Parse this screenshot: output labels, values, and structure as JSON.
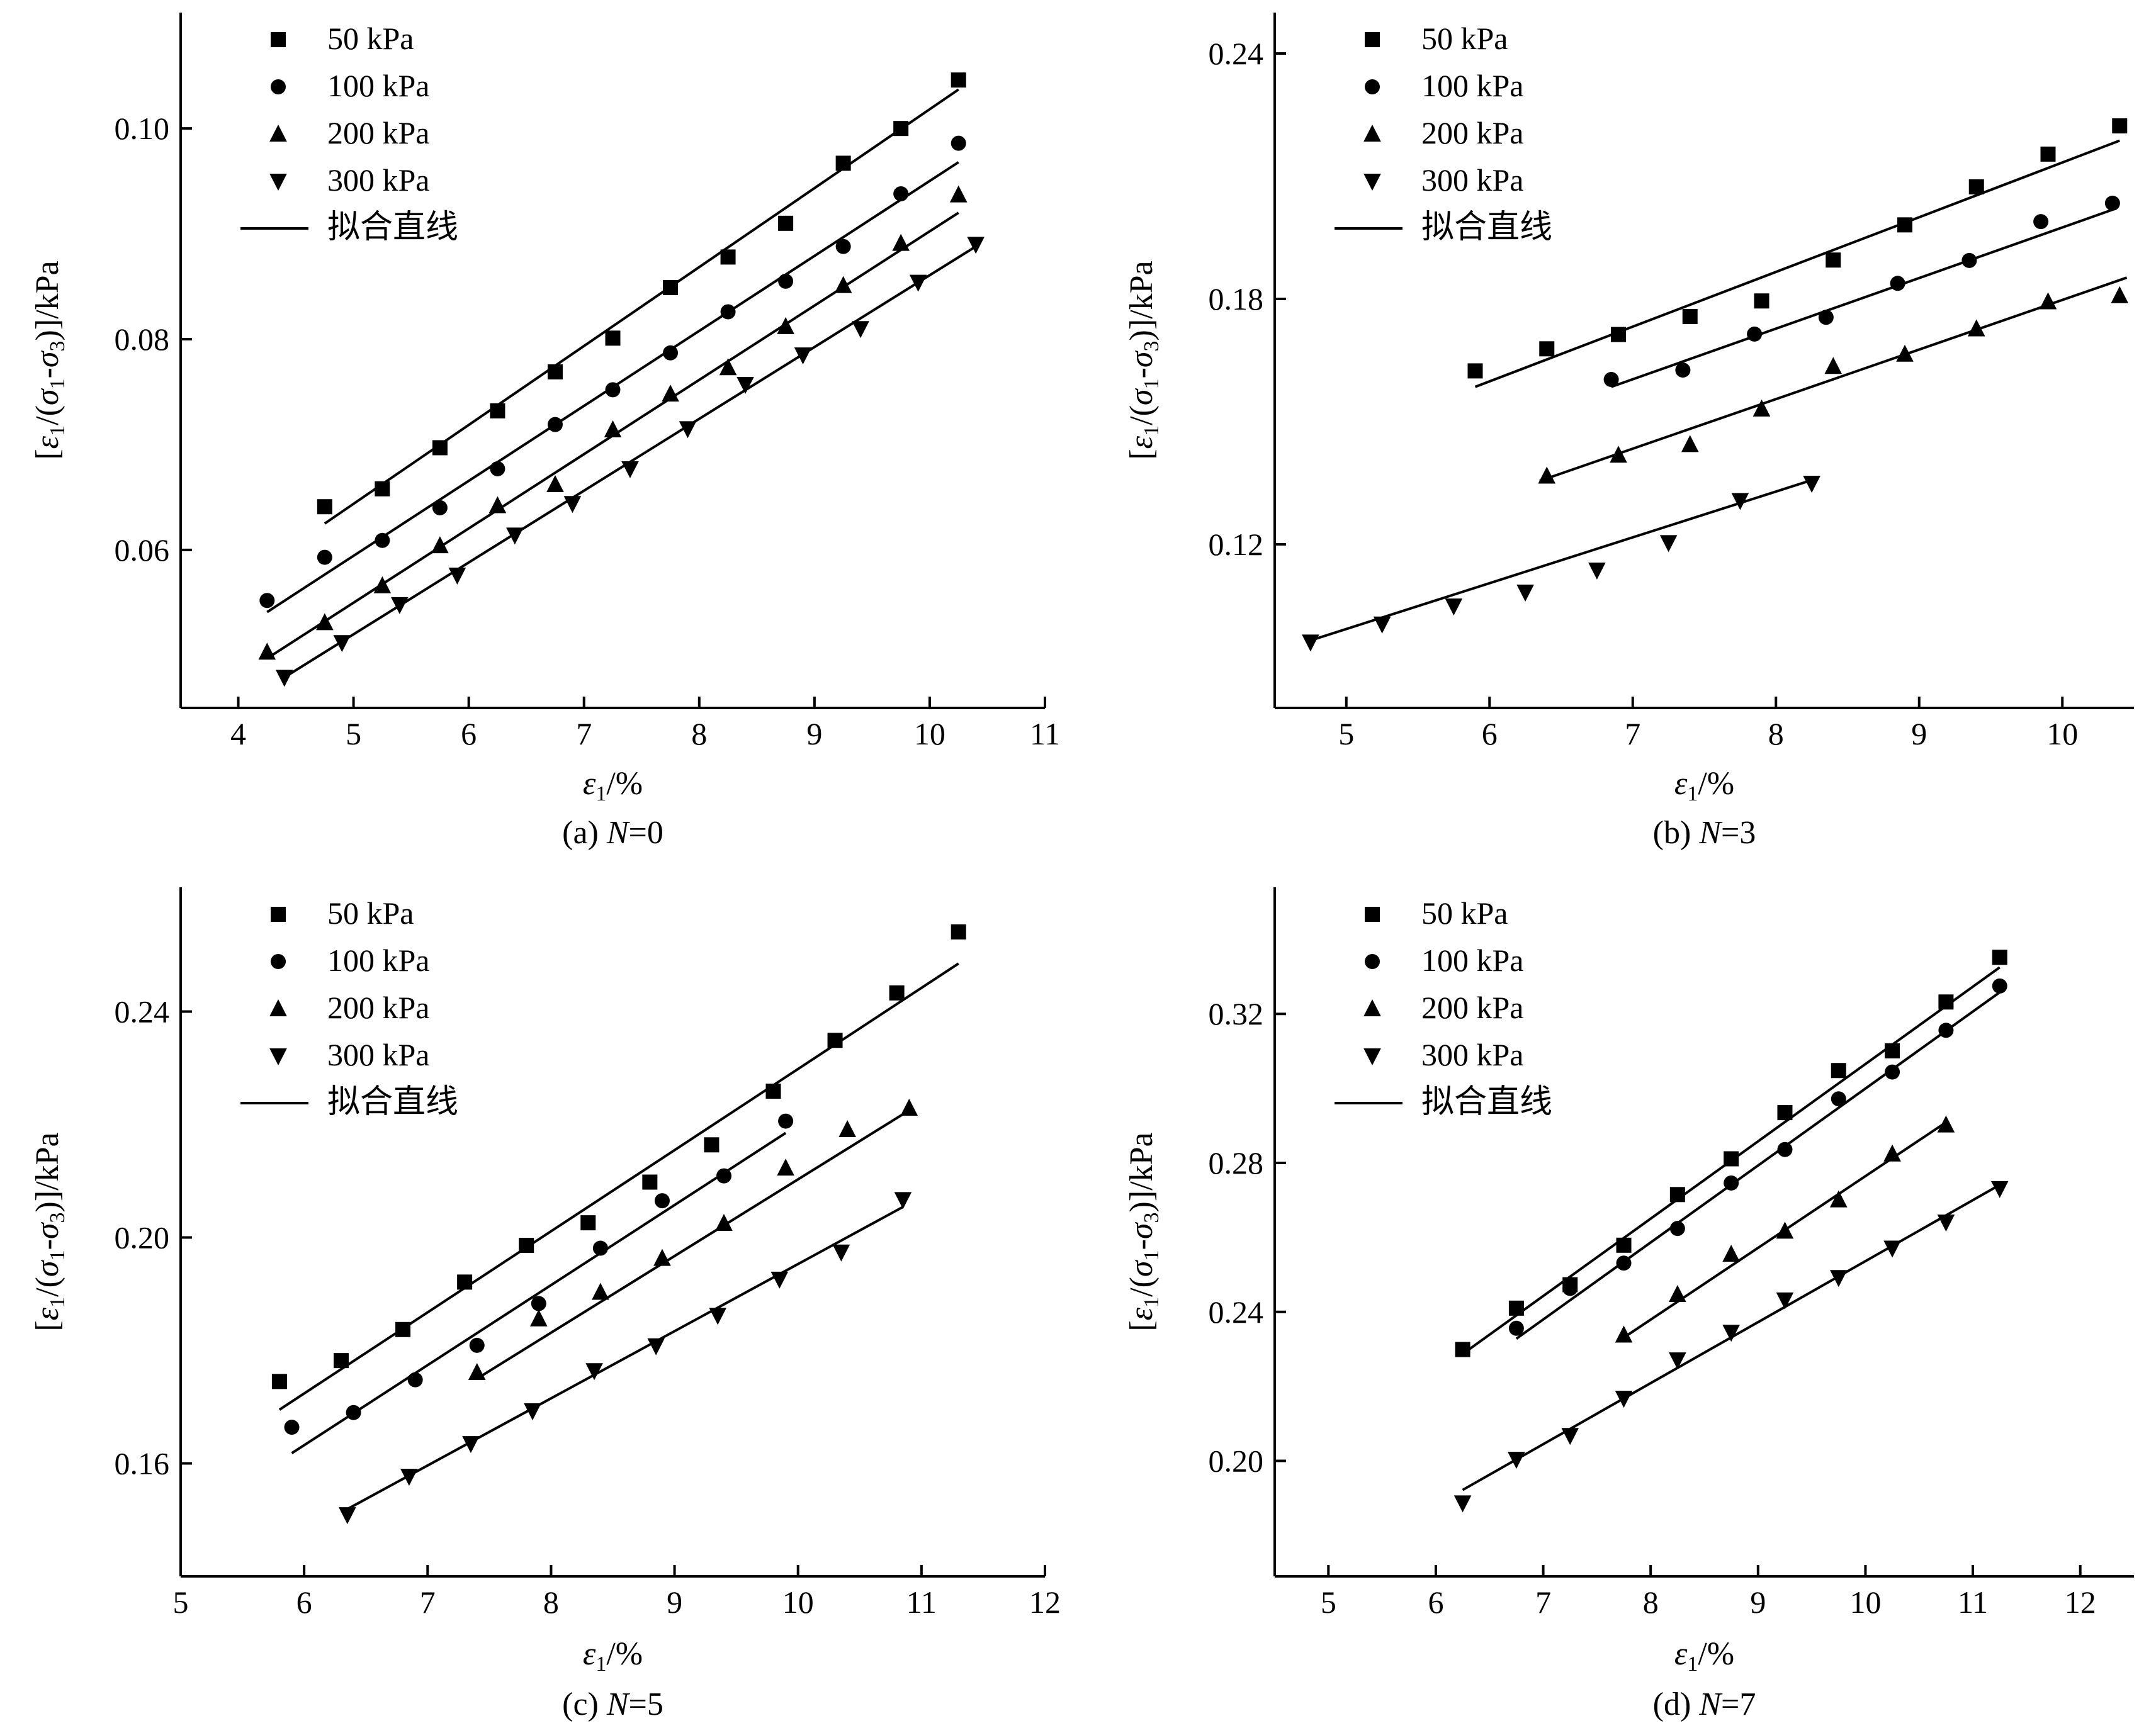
{
  "legend": {
    "series": [
      "50 kPa",
      "100 kPa",
      "200 kPa",
      "300 kPa"
    ],
    "fit_label": "拟合直线"
  },
  "axes_text": {
    "xlabel": "ε1/%",
    "ylabel": "[ε1/(σ1-σ3)]/kPa"
  },
  "chart_data": [
    {
      "type": "scatter",
      "caption": "(a) N=0",
      "xlim": [
        3.5,
        11
      ],
      "ylim": [
        0.045,
        0.111
      ],
      "xticks": [
        4,
        5,
        6,
        7,
        8,
        9,
        10,
        11
      ],
      "yticks": [
        0.06,
        0.08,
        0.1
      ],
      "ytick_labels": [
        "0.06",
        "0.08",
        "0.10"
      ],
      "series": [
        {
          "name": "50 kPa",
          "marker": "square",
          "x": [
            4.75,
            5.25,
            5.75,
            6.25,
            6.75,
            7.25,
            7.75,
            8.25,
            8.75,
            9.25,
            9.75,
            10.25
          ],
          "y": [
            0.0641,
            0.0658,
            0.0697,
            0.0732,
            0.0769,
            0.0801,
            0.0849,
            0.0878,
            0.091,
            0.0967,
            0.1,
            0.1046
          ],
          "fit": [
            [
              4.75,
              0.0625
            ],
            [
              10.25,
              0.1037
            ]
          ]
        },
        {
          "name": "100 kPa",
          "marker": "circle",
          "x": [
            4.25,
            4.75,
            5.25,
            5.75,
            6.25,
            6.75,
            7.25,
            7.75,
            8.25,
            8.75,
            9.25,
            9.75,
            10.25
          ],
          "y": [
            0.0552,
            0.0593,
            0.0609,
            0.064,
            0.0677,
            0.0719,
            0.0752,
            0.0787,
            0.0826,
            0.0855,
            0.0888,
            0.0938,
            0.0986
          ],
          "fit": [
            [
              4.25,
              0.0541
            ],
            [
              10.25,
              0.0968
            ]
          ]
        },
        {
          "name": "200 kPa",
          "marker": "triangle-up",
          "x": [
            4.25,
            4.75,
            5.25,
            5.75,
            6.25,
            6.75,
            7.25,
            7.75,
            8.25,
            8.75,
            9.25,
            9.75,
            10.25
          ],
          "y": [
            0.0503,
            0.0531,
            0.0566,
            0.0604,
            0.0642,
            0.0662,
            0.0714,
            0.0748,
            0.0773,
            0.0812,
            0.0851,
            0.0891,
            0.0937
          ],
          "fit": [
            [
              4.25,
              0.0497
            ],
            [
              10.25,
              0.092
            ]
          ]
        },
        {
          "name": "300 kPa",
          "marker": "triangle-down",
          "x": [
            4.4,
            4.9,
            5.4,
            5.9,
            6.4,
            6.9,
            7.4,
            7.9,
            8.4,
            8.9,
            9.4,
            9.9,
            10.4
          ],
          "y": [
            0.0479,
            0.0512,
            0.0548,
            0.0576,
            0.0614,
            0.0644,
            0.0677,
            0.0715,
            0.0757,
            0.0785,
            0.081,
            0.0854,
            0.089
          ],
          "fit": [
            [
              4.4,
              0.0479
            ],
            [
              10.4,
              0.0888
            ]
          ]
        }
      ]
    },
    {
      "type": "scatter",
      "caption": "(b) N=3",
      "xlim": [
        4.5,
        10.5
      ],
      "ylim": [
        0.08,
        0.25
      ],
      "xticks": [
        5,
        6,
        7,
        8,
        9,
        10
      ],
      "yticks": [
        0.12,
        0.18,
        0.24
      ],
      "ytick_labels": [
        "0.12",
        "0.18",
        "0.24"
      ],
      "series": [
        {
          "name": "50 kPa",
          "marker": "square",
          "x": [
            5.9,
            6.4,
            6.9,
            7.4,
            7.9,
            8.4,
            8.9,
            9.4,
            9.9,
            10.4
          ],
          "y": [
            0.1624,
            0.1678,
            0.1713,
            0.1757,
            0.1795,
            0.1895,
            0.1981,
            0.2074,
            0.2154,
            0.2223
          ],
          "fit": [
            [
              5.9,
              0.1585
            ],
            [
              10.4,
              0.2187
            ]
          ]
        },
        {
          "name": "100 kPa",
          "marker": "circle",
          "x": [
            6.85,
            7.35,
            7.85,
            8.35,
            8.85,
            9.35,
            9.85,
            10.35
          ],
          "y": [
            0.1603,
            0.1626,
            0.1714,
            0.1755,
            0.1838,
            0.1894,
            0.1989,
            0.2034
          ],
          "fit": [
            [
              6.85,
              0.1585
            ],
            [
              10.35,
              0.2018
            ]
          ]
        },
        {
          "name": "200 kPa",
          "marker": "triangle-up",
          "x": [
            6.4,
            6.9,
            7.4,
            7.9,
            8.4,
            8.9,
            9.4,
            9.9,
            10.4
          ],
          "y": [
            0.1367,
            0.1418,
            0.1444,
            0.1531,
            0.1635,
            0.1665,
            0.1727,
            0.1793,
            0.1808
          ],
          "fit": [
            [
              6.35,
              0.1355
            ],
            [
              10.45,
              0.1852
            ]
          ]
        },
        {
          "name": "300 kPa",
          "marker": "triangle-down",
          "x": [
            4.75,
            5.25,
            5.75,
            6.25,
            6.75,
            7.25,
            7.75,
            8.25
          ],
          "y": [
            0.0961,
            0.1005,
            0.1049,
            0.1083,
            0.1137,
            0.1204,
            0.1307,
            0.1349
          ],
          "fit": [
            [
              4.75,
              0.0965
            ],
            [
              8.25,
              0.1357
            ]
          ]
        }
      ]
    },
    {
      "type": "scatter",
      "caption": "(c) N=5",
      "xlim": [
        5,
        12
      ],
      "ylim": [
        0.14,
        0.262
      ],
      "xticks": [
        5,
        6,
        7,
        8,
        9,
        10,
        11,
        12
      ],
      "yticks": [
        0.16,
        0.2,
        0.24
      ],
      "ytick_labels": [
        "0.16",
        "0.20",
        "0.24"
      ],
      "series": [
        {
          "name": "50 kPa",
          "marker": "square",
          "x": [
            5.8,
            6.3,
            6.8,
            7.3,
            7.8,
            8.3,
            8.8,
            9.3,
            9.8,
            10.3,
            10.8,
            11.3
          ],
          "y": [
            0.1745,
            0.1782,
            0.1837,
            0.1921,
            0.1986,
            0.2026,
            0.2098,
            0.2164,
            0.2259,
            0.2349,
            0.2433,
            0.2541
          ],
          "fit": [
            [
              5.8,
              0.1695
            ],
            [
              11.3,
              0.2485
            ]
          ]
        },
        {
          "name": "100 kPa",
          "marker": "circle",
          "x": [
            5.9,
            6.4,
            6.9,
            7.4,
            7.9,
            8.4,
            8.9,
            9.4,
            9.9
          ],
          "y": [
            0.1664,
            0.169,
            0.1748,
            0.1809,
            0.1883,
            0.1981,
            0.2065,
            0.2109,
            0.2206
          ],
          "fit": [
            [
              5.9,
              0.1618
            ],
            [
              9.9,
              0.2185
            ]
          ]
        },
        {
          "name": "200 kPa",
          "marker": "triangle-up",
          "x": [
            7.4,
            7.9,
            8.4,
            8.9,
            9.4,
            9.9,
            10.4,
            10.9
          ],
          "y": [
            0.1761,
            0.1856,
            0.1903,
            0.1963,
            0.2025,
            0.2123,
            0.2191,
            0.2229
          ],
          "fit": [
            [
              7.4,
              0.175
            ],
            [
              10.9,
              0.2225
            ]
          ]
        },
        {
          "name": "300 kPa",
          "marker": "triangle-down",
          "x": [
            6.35,
            6.85,
            7.35,
            7.85,
            8.35,
            8.85,
            9.35,
            9.85,
            10.35,
            10.85
          ],
          "y": [
            0.1509,
            0.1577,
            0.1635,
            0.1693,
            0.1764,
            0.1808,
            0.1862,
            0.1926,
            0.1974,
            0.2067
          ],
          "fit": [
            [
              6.35,
              0.1519
            ],
            [
              10.85,
              0.2054
            ]
          ]
        }
      ]
    },
    {
      "type": "scatter",
      "caption": "(d) N=7",
      "xlim": [
        4.5,
        12.5
      ],
      "ylim": [
        0.169,
        0.354
      ],
      "xticks": [
        5,
        6,
        7,
        8,
        9,
        10,
        11,
        12
      ],
      "yticks": [
        0.2,
        0.24,
        0.28,
        0.32
      ],
      "ytick_labels": [
        "0.20",
        "0.24",
        "0.28",
        "0.32"
      ],
      "series": [
        {
          "name": "50 kPa",
          "marker": "square",
          "x": [
            6.25,
            6.75,
            7.25,
            7.75,
            8.25,
            8.75,
            9.25,
            9.75,
            10.25,
            10.75,
            11.25
          ],
          "y": [
            0.2299,
            0.241,
            0.2473,
            0.2579,
            0.2715,
            0.2811,
            0.2935,
            0.3048,
            0.3101,
            0.3232,
            0.3352
          ],
          "fit": [
            [
              6.25,
              0.2287
            ],
            [
              11.25,
              0.3325
            ]
          ]
        },
        {
          "name": "100 kPa",
          "marker": "circle",
          "x": [
            6.75,
            7.25,
            7.75,
            8.25,
            8.75,
            9.25,
            9.75,
            10.25,
            10.75,
            11.25
          ],
          "y": [
            0.2356,
            0.2463,
            0.2531,
            0.2624,
            0.2746,
            0.2836,
            0.2972,
            0.3044,
            0.3156,
            0.3275
          ],
          "fit": [
            [
              6.75,
              0.2328
            ],
            [
              11.25,
              0.3258
            ]
          ]
        },
        {
          "name": "200 kPa",
          "marker": "triangle-up",
          "x": [
            7.75,
            8.25,
            8.75,
            9.25,
            9.75,
            10.25,
            10.75
          ],
          "y": [
            0.2338,
            0.2447,
            0.2555,
            0.2617,
            0.2701,
            0.2824,
            0.2902
          ],
          "fit": [
            [
              7.75,
              0.2331
            ],
            [
              10.75,
              0.2909
            ]
          ]
        },
        {
          "name": "300 kPa",
          "marker": "triangle-down",
          "x": [
            6.25,
            6.75,
            7.25,
            7.75,
            8.25,
            8.75,
            9.25,
            9.75,
            10.25,
            10.75,
            11.25
          ],
          "y": [
            0.1887,
            0.2004,
            0.2068,
            0.2168,
            0.2271,
            0.2345,
            0.2432,
            0.2492,
            0.2571,
            0.2641,
            0.2731
          ],
          "fit": [
            [
              6.25,
              0.1922
            ],
            [
              11.25,
              0.2741
            ]
          ]
        }
      ]
    }
  ]
}
